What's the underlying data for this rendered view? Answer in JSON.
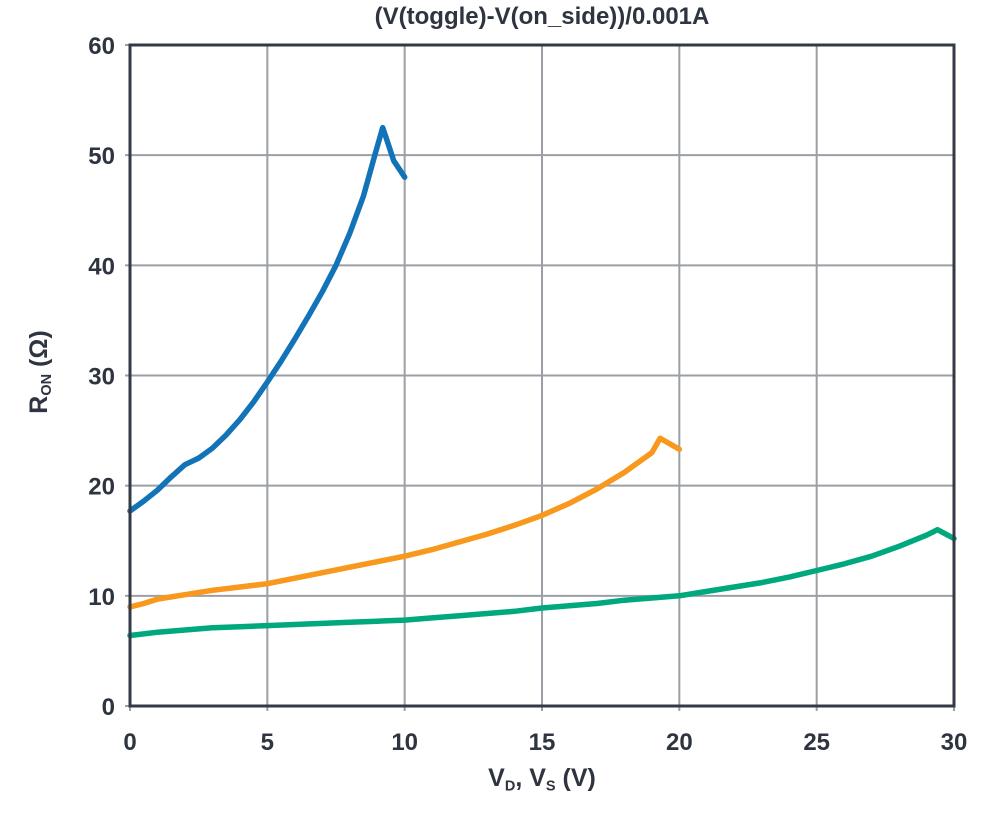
{
  "chart_data": {
    "type": "line",
    "title": "(V(toggle)-V(on_side))/0.001A",
    "xlabel_parts": {
      "p1": "V",
      "sub1": "D",
      "p2": ", V",
      "sub2": "S",
      "p3": " (V)"
    },
    "ylabel_parts": {
      "p1": "R",
      "sub1": "ON",
      "p2": " (Ω)"
    },
    "xlim": [
      0,
      30
    ],
    "ylim": [
      0,
      60
    ],
    "xticks": [
      0,
      5,
      10,
      15,
      20,
      25,
      30
    ],
    "yticks": [
      0,
      10,
      20,
      30,
      40,
      50,
      60
    ],
    "grid": true,
    "legend": "none",
    "colors": {
      "text": "#2E3440",
      "grid": "#9B9FA5",
      "frame": "#333A45",
      "background": "#FFFFFF"
    },
    "series": [
      {
        "name": "blue-curve",
        "color": "#1273B8",
        "points": [
          [
            0,
            17.7
          ],
          [
            0.5,
            18.6
          ],
          [
            1,
            19.6
          ],
          [
            1.5,
            20.8
          ],
          [
            2,
            21.9
          ],
          [
            2.5,
            22.5
          ],
          [
            3,
            23.4
          ],
          [
            3.5,
            24.6
          ],
          [
            4,
            26.0
          ],
          [
            4.5,
            27.6
          ],
          [
            5,
            29.4
          ],
          [
            5.5,
            31.3
          ],
          [
            6,
            33.3
          ],
          [
            6.5,
            35.4
          ],
          [
            7,
            37.6
          ],
          [
            7.5,
            40.0
          ],
          [
            8,
            42.9
          ],
          [
            8.5,
            46.3
          ],
          [
            8.9,
            49.9
          ],
          [
            9.2,
            52.5
          ],
          [
            9.35,
            51.4
          ],
          [
            9.6,
            49.5
          ],
          [
            10,
            48.0
          ]
        ]
      },
      {
        "name": "orange-curve",
        "color": "#F8981D",
        "points": [
          [
            0,
            9.0
          ],
          [
            0.5,
            9.3
          ],
          [
            1,
            9.7
          ],
          [
            1.5,
            9.9
          ],
          [
            2,
            10.1
          ],
          [
            3,
            10.5
          ],
          [
            4,
            10.8
          ],
          [
            5,
            11.1
          ],
          [
            6,
            11.6
          ],
          [
            7,
            12.1
          ],
          [
            8,
            12.6
          ],
          [
            9,
            13.1
          ],
          [
            10,
            13.6
          ],
          [
            11,
            14.2
          ],
          [
            12,
            14.9
          ],
          [
            13,
            15.6
          ],
          [
            14,
            16.4
          ],
          [
            15,
            17.3
          ],
          [
            16,
            18.4
          ],
          [
            17,
            19.7
          ],
          [
            18,
            21.2
          ],
          [
            19,
            23.0
          ],
          [
            19.3,
            24.3
          ],
          [
            20,
            23.3
          ]
        ]
      },
      {
        "name": "green-curve",
        "color": "#00A87E",
        "points": [
          [
            0,
            6.4
          ],
          [
            1,
            6.7
          ],
          [
            2,
            6.9
          ],
          [
            3,
            7.1
          ],
          [
            4,
            7.2
          ],
          [
            5,
            7.3
          ],
          [
            6,
            7.4
          ],
          [
            7,
            7.5
          ],
          [
            8,
            7.6
          ],
          [
            9,
            7.7
          ],
          [
            10,
            7.8
          ],
          [
            11,
            8.0
          ],
          [
            12,
            8.2
          ],
          [
            13,
            8.4
          ],
          [
            14,
            8.6
          ],
          [
            15,
            8.9
          ],
          [
            16,
            9.1
          ],
          [
            17,
            9.3
          ],
          [
            18,
            9.6
          ],
          [
            19,
            9.8
          ],
          [
            20,
            10.0
          ],
          [
            21,
            10.4
          ],
          [
            22,
            10.8
          ],
          [
            23,
            11.2
          ],
          [
            24,
            11.7
          ],
          [
            25,
            12.3
          ],
          [
            26,
            12.9
          ],
          [
            27,
            13.6
          ],
          [
            28,
            14.5
          ],
          [
            29,
            15.5
          ],
          [
            29.4,
            16.0
          ],
          [
            30,
            15.2
          ]
        ]
      }
    ]
  }
}
